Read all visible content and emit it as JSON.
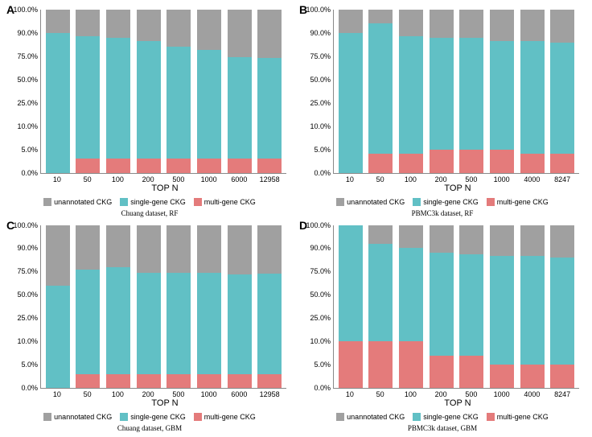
{
  "colors": {
    "unannotated": "#a0a0a0",
    "single": "#61c0c5",
    "multi": "#e47b7b",
    "background": "#ffffff",
    "axis": "#888888",
    "text": "#000000"
  },
  "ytick_labels": [
    "0.0%",
    "5.0%",
    "10.0%",
    "25.0%",
    "50.0%",
    "75.0%",
    "90.0%",
    "100.0%"
  ],
  "ytick_pos": [
    0,
    5,
    10,
    25,
    50,
    75,
    90,
    100
  ],
  "axis_title": "TOP N",
  "legend": [
    {
      "label": "unannotated CKG",
      "color_key": "unannotated"
    },
    {
      "label": "single-gene CKG",
      "color_key": "single"
    },
    {
      "label": "multi-gene CKG",
      "color_key": "multi"
    }
  ],
  "panels": {
    "A": {
      "letter": "A",
      "caption": "Chuang dataset, RF",
      "categories": [
        "10",
        "50",
        "100",
        "200",
        "500",
        "1000",
        "6000",
        "12958"
      ],
      "stack": [
        {
          "multi": 0,
          "single": 90,
          "unannotated": 10
        },
        {
          "multi": 3,
          "single": 85,
          "unannotated": 12
        },
        {
          "multi": 3,
          "single": 84,
          "unannotated": 13
        },
        {
          "multi": 3,
          "single": 82,
          "unannotated": 15
        },
        {
          "multi": 3,
          "single": 78,
          "unannotated": 19
        },
        {
          "multi": 3,
          "single": 76,
          "unannotated": 21
        },
        {
          "multi": 3,
          "single": 71,
          "unannotated": 26
        },
        {
          "multi": 3,
          "single": 70,
          "unannotated": 27
        }
      ]
    },
    "B": {
      "letter": "B",
      "caption": "PBMC3k dataset, RF",
      "categories": [
        "10",
        "50",
        "100",
        "200",
        "500",
        "1000",
        "4000",
        "8247"
      ],
      "stack": [
        {
          "multi": 0,
          "single": 90,
          "unannotated": 10
        },
        {
          "multi": 4,
          "single": 90,
          "unannotated": 6
        },
        {
          "multi": 4,
          "single": 84,
          "unannotated": 12
        },
        {
          "multi": 5,
          "single": 82,
          "unannotated": 13
        },
        {
          "multi": 5,
          "single": 82,
          "unannotated": 13
        },
        {
          "multi": 5,
          "single": 80,
          "unannotated": 15
        },
        {
          "multi": 4,
          "single": 81,
          "unannotated": 15
        },
        {
          "multi": 4,
          "single": 80,
          "unannotated": 16
        }
      ]
    },
    "C": {
      "letter": "C",
      "caption": "Chuang dataset, GBM",
      "categories": [
        "10",
        "50",
        "100",
        "200",
        "500",
        "1000",
        "6000",
        "12958"
      ],
      "stack": [
        {
          "multi": 0,
          "single": 60,
          "unannotated": 40
        },
        {
          "multi": 3,
          "single": 73,
          "unannotated": 24
        },
        {
          "multi": 3,
          "single": 75,
          "unannotated": 22
        },
        {
          "multi": 3,
          "single": 71,
          "unannotated": 26
        },
        {
          "multi": 3,
          "single": 71,
          "unannotated": 26
        },
        {
          "multi": 3,
          "single": 71,
          "unannotated": 26
        },
        {
          "multi": 3,
          "single": 69,
          "unannotated": 28
        },
        {
          "multi": 3,
          "single": 70,
          "unannotated": 27
        }
      ]
    },
    "D": {
      "letter": "D",
      "caption": "PBMC3k dataset, GBM",
      "categories": [
        "10",
        "50",
        "100",
        "200",
        "500",
        "1000",
        "4000",
        "8247"
      ],
      "stack": [
        {
          "multi": 10,
          "single": 90,
          "unannotated": 0
        },
        {
          "multi": 10,
          "single": 82,
          "unannotated": 8
        },
        {
          "multi": 10,
          "single": 80,
          "unannotated": 10
        },
        {
          "multi": 7,
          "single": 80,
          "unannotated": 13
        },
        {
          "multi": 7,
          "single": 79,
          "unannotated": 14
        },
        {
          "multi": 5,
          "single": 80,
          "unannotated": 15
        },
        {
          "multi": 5,
          "single": 80,
          "unannotated": 15
        },
        {
          "multi": 5,
          "single": 79,
          "unannotated": 16
        }
      ]
    }
  }
}
